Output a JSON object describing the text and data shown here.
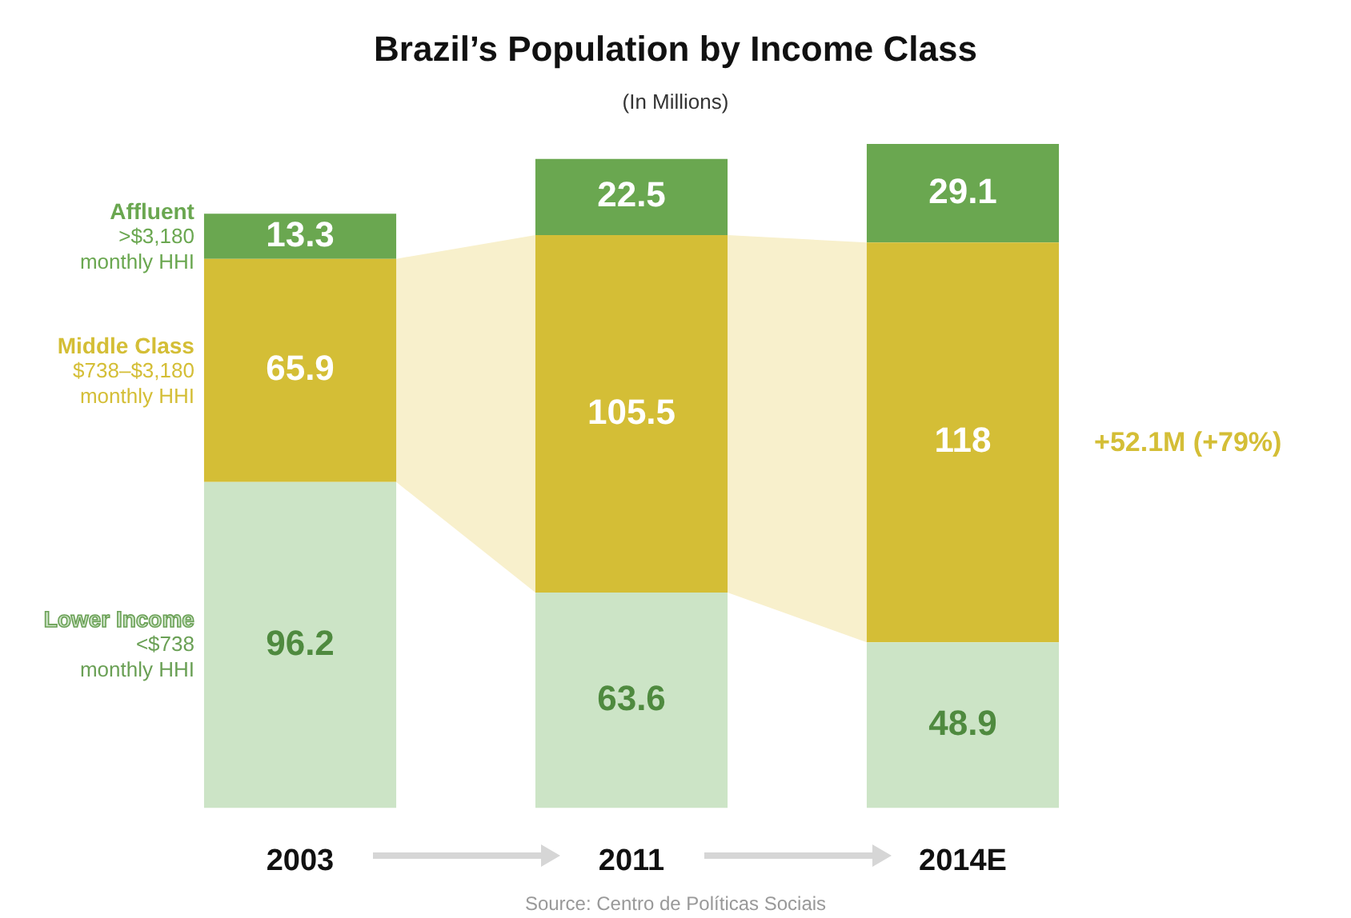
{
  "chart_data": {
    "type": "bar",
    "title": "Brazil’s Population by Income Class",
    "subtitle": "(In Millions)",
    "categories": [
      "2003",
      "2011",
      "2014E"
    ],
    "stacked": true,
    "data_labels": true,
    "legend": false,
    "grid": false,
    "series": [
      {
        "name": "Lower Income",
        "color": "#cce4c6",
        "values": [
          96.2,
          63.6,
          48.9
        ]
      },
      {
        "name": "Middle Class",
        "color": "#d4be36",
        "values": [
          65.9,
          105.5,
          118
        ]
      },
      {
        "name": "Affluent",
        "color": "#6aa750",
        "values": [
          13.3,
          22.5,
          29.1
        ]
      }
    ],
    "annotations": [
      "<$738 monthly HHI",
      "$738–$3,180 monthly HHI",
      ">$3,180 monthly HHI",
      "+52.1M (+79%)",
      "Source: Centro de Políticas Sociais"
    ]
  }
}
